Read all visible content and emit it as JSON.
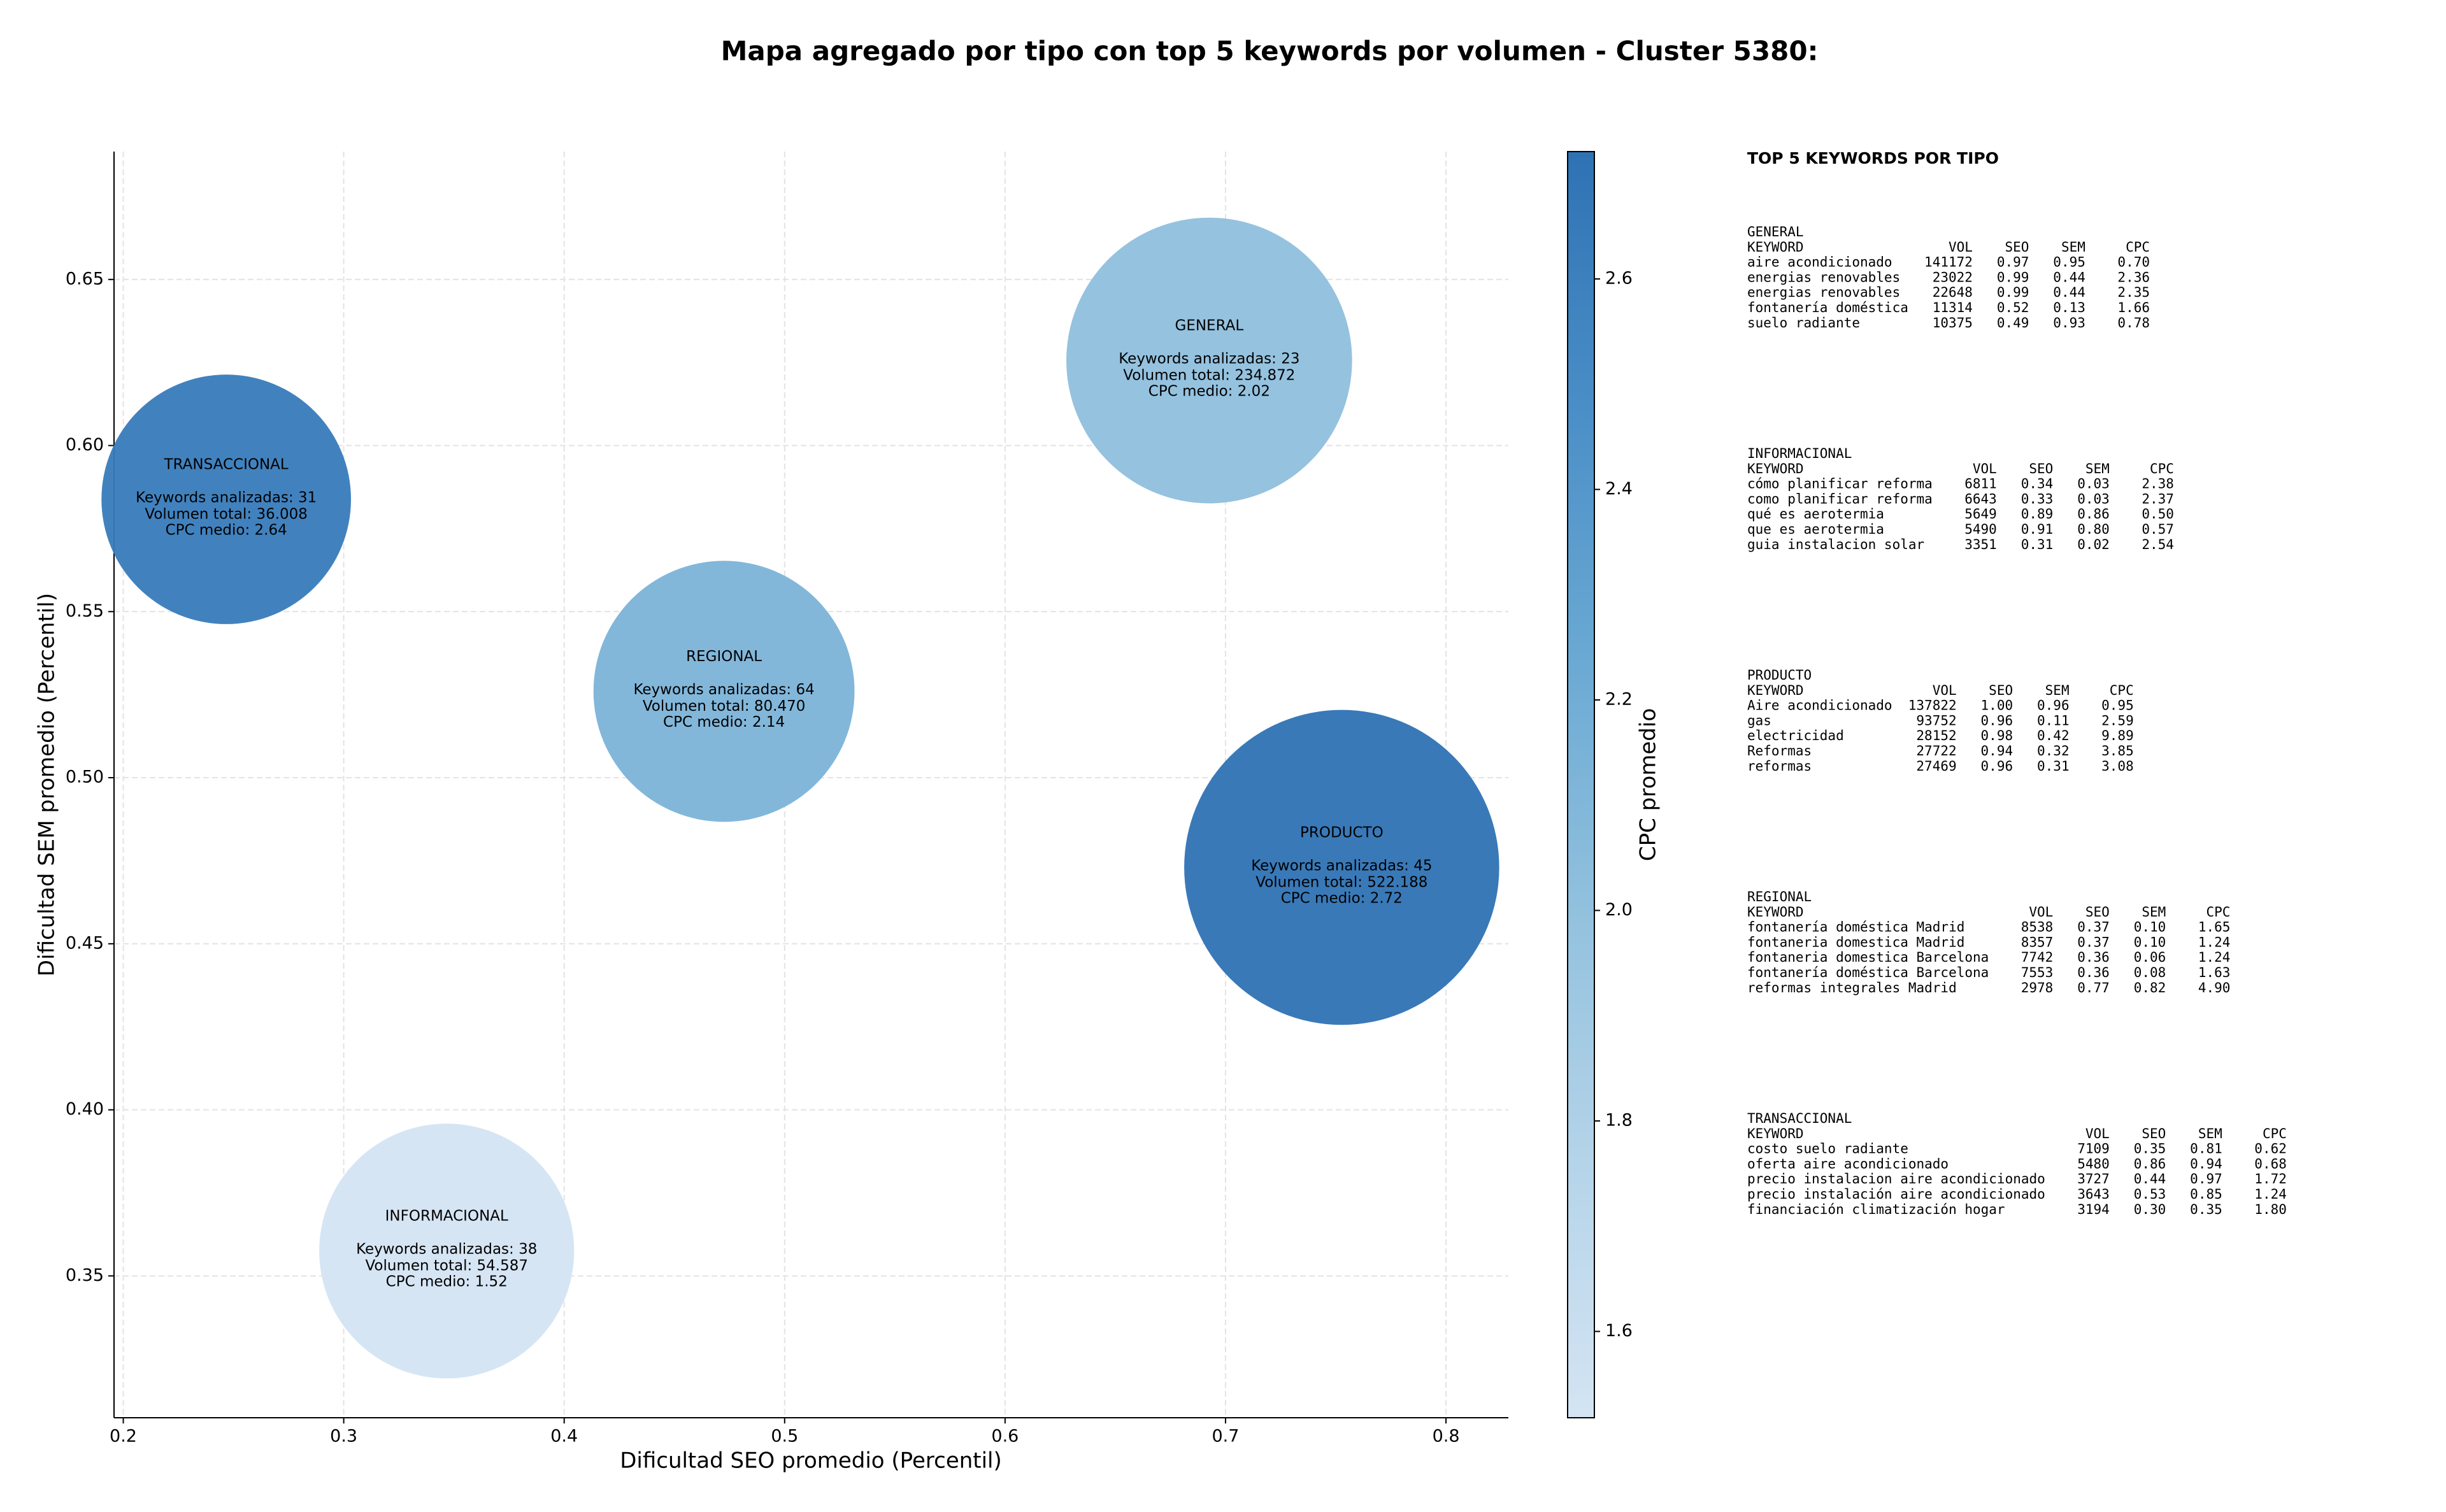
{
  "chart_data": {
    "type": "bubble",
    "title": "Mapa agregado por tipo con top 5 keywords por volumen - Cluster 5380:",
    "xlabel": "Dificultad SEO promedio (Percentil)",
    "ylabel": "Dificultad SEM promedio (Percentil)",
    "xlim": [
      0.1958,
      0.8283
    ],
    "ylim": [
      0.3073,
      0.6885
    ],
    "xticks": [
      0.2,
      0.3,
      0.4,
      0.5,
      0.6,
      0.7,
      0.8
    ],
    "yticks": [
      0.35,
      {
        "value": 0.4,
        "label": "0.40"
      },
      0.45,
      {
        "value": 0.5,
        "label": "0.50"
      },
      0.55,
      {
        "value": 0.6,
        "label": "0.60"
      },
      0.65
    ],
    "grid": true,
    "colorbar": {
      "label": "CPC promedio",
      "lim": [
        1.518,
        2.721
      ],
      "ticks": [
        1.6,
        1.8,
        {
          "value": 2,
          "label": "2.0"
        },
        2.2,
        2.4,
        2.6
      ],
      "colormap": [
        "#d4e4f3",
        "#b5d4e9",
        "#92c1de",
        "#6aa9d3",
        "#4a8ec7",
        "#2e72b4"
      ]
    },
    "points": [
      {
        "x": 0.2467,
        "y": 0.5838,
        "size": 36008,
        "color_value": 2.64,
        "labels": [
          "TRANSACCIONAL",
          "Keywords analizadas: 31",
          "Volumen total: 36.008",
          "CPC medio: 2.64"
        ]
      },
      {
        "x": 0.6926,
        "y": 0.6256,
        "size": 234872,
        "color_value": 2.02,
        "labels": [
          "GENERAL",
          "Keywords analizadas: 23",
          "Volumen total: 234.872",
          "CPC medio: 2.02"
        ]
      },
      {
        "x": 0.4725,
        "y": 0.526,
        "size": 80470,
        "color_value": 2.14,
        "labels": [
          "REGIONAL",
          "Keywords analizadas: 64",
          "Volumen total: 80.470",
          "CPC medio: 2.14"
        ]
      },
      {
        "x": 0.7527,
        "y": 0.473,
        "size": 522188,
        "color_value": 2.72,
        "labels": [
          "PRODUCTO",
          "Keywords analizadas: 45",
          "Volumen total: 522.188",
          "CPC medio: 2.72"
        ]
      },
      {
        "x": 0.3467,
        "y": 0.3575,
        "size": 54587,
        "color_value": 1.52,
        "labels": [
          "INFORMACIONAL",
          "Keywords analizadas: 38",
          "Volumen total: 54.587",
          "CPC medio: 1.52"
        ]
      }
    ]
  },
  "side_panel": {
    "title": "TOP 5 KEYWORDS POR TIPO",
    "sections": [
      {
        "name": "GENERAL",
        "header": [
          "KEYWORD",
          "VOL",
          "SEO",
          "SEM",
          "CPC"
        ],
        "rows": [
          [
            "aire acondicionado",
            "141172",
            "0.97",
            "0.95",
            "0.70"
          ],
          [
            "energias renovables",
            "23022",
            "0.99",
            "0.44",
            "2.36"
          ],
          [
            "energias renovables",
            "22648",
            "0.99",
            "0.44",
            "2.35"
          ],
          [
            "fontanería doméstica",
            "11314",
            "0.52",
            "0.13",
            "1.66"
          ],
          [
            "suelo radiante",
            "10375",
            "0.49",
            "0.93",
            "0.78"
          ]
        ]
      },
      {
        "name": "INFORMACIONAL",
        "header": [
          "KEYWORD",
          "VOL",
          "SEO",
          "SEM",
          "CPC"
        ],
        "rows": [
          [
            "cómo planificar reforma",
            "6811",
            "0.34",
            "0.03",
            "2.38"
          ],
          [
            "como planificar reforma",
            "6643",
            "0.33",
            "0.03",
            "2.37"
          ],
          [
            "qué es aerotermia",
            "5649",
            "0.89",
            "0.86",
            "0.50"
          ],
          [
            "que es aerotermia",
            "5490",
            "0.91",
            "0.80",
            "0.57"
          ],
          [
            "guia instalacion solar",
            "3351",
            "0.31",
            "0.02",
            "2.54"
          ]
        ]
      },
      {
        "name": "PRODUCTO",
        "header": [
          "KEYWORD",
          "VOL",
          "SEO",
          "SEM",
          "CPC"
        ],
        "rows": [
          [
            "Aire acondicionado",
            "137822",
            "1.00",
            "0.96",
            "0.95"
          ],
          [
            "gas",
            "93752",
            "0.96",
            "0.11",
            "2.59"
          ],
          [
            "electricidad",
            "28152",
            "0.98",
            "0.42",
            "9.89"
          ],
          [
            "Reformas",
            "27722",
            "0.94",
            "0.32",
            "3.85"
          ],
          [
            "reformas",
            "27469",
            "0.96",
            "0.31",
            "3.08"
          ]
        ]
      },
      {
        "name": "REGIONAL",
        "header": [
          "KEYWORD",
          "VOL",
          "SEO",
          "SEM",
          "CPC"
        ],
        "rows": [
          [
            "fontanería doméstica Madrid",
            "8538",
            "0.37",
            "0.10",
            "1.65"
          ],
          [
            "fontaneria domestica Madrid",
            "8357",
            "0.37",
            "0.10",
            "1.24"
          ],
          [
            "fontaneria domestica Barcelona",
            "7742",
            "0.36",
            "0.06",
            "1.24"
          ],
          [
            "fontanería doméstica Barcelona",
            "7553",
            "0.36",
            "0.08",
            "1.63"
          ],
          [
            "reformas integrales Madrid",
            "2978",
            "0.77",
            "0.82",
            "4.90"
          ]
        ]
      },
      {
        "name": "TRANSACCIONAL",
        "header": [
          "KEYWORD",
          "VOL",
          "SEO",
          "SEM",
          "CPC"
        ],
        "rows": [
          [
            "costo suelo radiante",
            "7109",
            "0.35",
            "0.81",
            "0.62"
          ],
          [
            "oferta aire acondicionado",
            "5480",
            "0.86",
            "0.94",
            "0.68"
          ],
          [
            "precio instalacion aire acondicionado",
            "3727",
            "0.44",
            "0.97",
            "1.72"
          ],
          [
            "precio instalación aire acondicionado",
            "3643",
            "0.53",
            "0.85",
            "1.24"
          ],
          [
            "financiación climatización hogar",
            "3194",
            "0.30",
            "0.35",
            "1.80"
          ]
        ]
      }
    ]
  }
}
